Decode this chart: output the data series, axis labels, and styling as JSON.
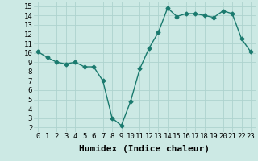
{
  "x": [
    0,
    1,
    2,
    3,
    4,
    5,
    6,
    7,
    8,
    9,
    10,
    11,
    12,
    13,
    14,
    15,
    16,
    17,
    18,
    19,
    20,
    21,
    22,
    23
  ],
  "y": [
    10.1,
    9.5,
    9.0,
    8.8,
    9.0,
    8.5,
    8.5,
    7.0,
    3.0,
    2.2,
    4.8,
    8.3,
    10.5,
    12.2,
    14.8,
    13.9,
    14.2,
    14.2,
    14.0,
    13.8,
    14.5,
    14.2,
    11.5,
    10.1
  ],
  "line_color": "#1a7a6e",
  "marker": "D",
  "markersize": 2.5,
  "linewidth": 1.0,
  "background_color": "#cce9e4",
  "grid_color": "#aed3ce",
  "xlabel": "Humidex (Indice chaleur)",
  "xlim": [
    -0.5,
    23.5
  ],
  "ylim": [
    1.5,
    15.5
  ],
  "yticks": [
    2,
    3,
    4,
    5,
    6,
    7,
    8,
    9,
    10,
    11,
    12,
    13,
    14,
    15
  ],
  "xticks": [
    0,
    1,
    2,
    3,
    4,
    5,
    6,
    7,
    8,
    9,
    10,
    11,
    12,
    13,
    14,
    15,
    16,
    17,
    18,
    19,
    20,
    21,
    22,
    23
  ],
  "tick_fontsize": 6.5,
  "xlabel_fontsize": 8,
  "xlabel_fontweight": "bold"
}
